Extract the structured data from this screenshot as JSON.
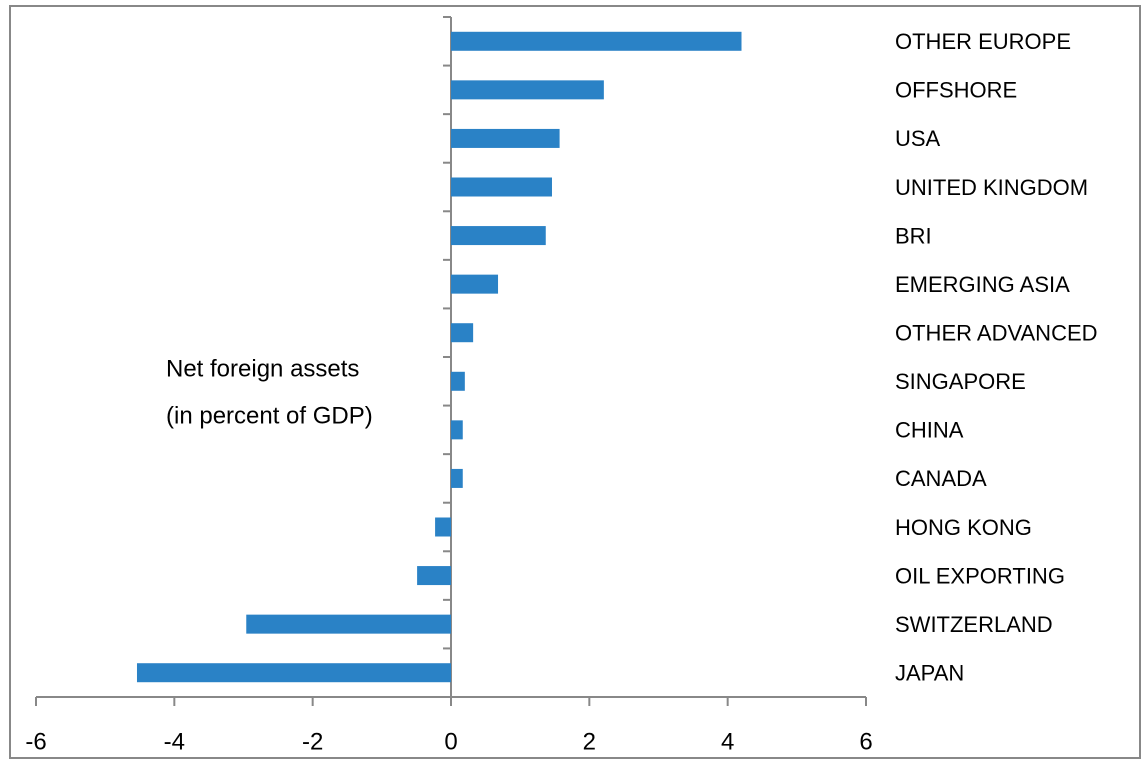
{
  "chart_data": {
    "type": "barh",
    "categories": [
      "OTHER EUROPE",
      "OFFSHORE",
      "USA",
      "UNITED KINGDOM",
      "BRI",
      "EMERGING ASIA",
      "OTHER ADVANCED",
      "SINGAPORE",
      "CHINA",
      "CANADA",
      "HONG KONG",
      "OIL EXPORTING",
      "SWITZERLAND",
      "JAPAN"
    ],
    "values": [
      4.2,
      2.21,
      1.57,
      1.46,
      1.37,
      0.68,
      0.32,
      0.2,
      0.17,
      0.17,
      -0.23,
      -0.49,
      -2.96,
      -4.54
    ],
    "color": "#2a82c6",
    "annotation": [
      "Net foreign assets",
      "(in percent of GDP)"
    ],
    "xlim": [
      -6,
      6
    ],
    "xticks": [
      -6,
      -4,
      -2,
      0,
      2,
      4,
      6
    ]
  }
}
